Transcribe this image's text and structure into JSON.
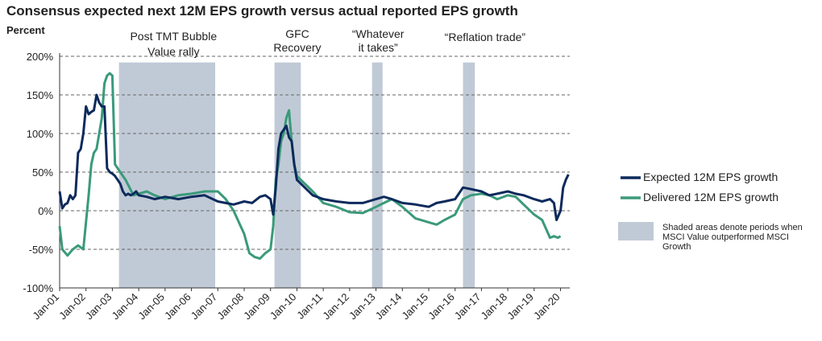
{
  "chart_data": {
    "type": "line",
    "title": "Consensus expected next 12M EPS growth versus actual reported EPS growth",
    "ylabel": "Percent",
    "ylim": [
      -100,
      200
    ],
    "y_ticks": [
      "200%",
      "150%",
      "100%",
      "50%",
      "0%",
      "-50%",
      "-100%"
    ],
    "y_tick_values": [
      200,
      150,
      100,
      50,
      0,
      -50,
      -100
    ],
    "x_tick_labels": [
      "Jan-01",
      "Jan-02",
      "Jan-03",
      "Jan-04",
      "Jan-05",
      "Jan-06",
      "Jan-07",
      "Jan-08",
      "Jan-09",
      "Jan-10",
      "Jan-11",
      "Jan-12",
      "Jan-13",
      "Jan-14",
      "Jan-15",
      "Jan-16",
      "Jan-17",
      "Jan-18",
      "Jan-19",
      "Jan-20"
    ],
    "xlim": [
      2001.0,
      2020.35
    ],
    "grid": "horizontal dashed",
    "colors": {
      "expected": "#0d2a5c",
      "delivered": "#3a9a7a",
      "shade": "#c0cad6"
    },
    "shaded_periods": [
      {
        "start": 2003.25,
        "end": 2006.9,
        "label": [
          "Post TMT Bubble",
          "Value rally"
        ]
      },
      {
        "start": 2009.15,
        "end": 2010.15,
        "label": [
          "GFC",
          "Recovery"
        ]
      },
      {
        "start": 2012.85,
        "end": 2013.25,
        "label": [
          "“Whatever",
          "it takes”"
        ]
      },
      {
        "start": 2016.3,
        "end": 2016.75,
        "label": [
          "“Reflation trade”"
        ]
      }
    ],
    "series": [
      {
        "name": "Expected 12M EPS growth",
        "x": [
          2001.0,
          2001.1,
          2001.2,
          2001.3,
          2001.4,
          2001.5,
          2001.6,
          2001.7,
          2001.8,
          2001.9,
          2002.0,
          2002.1,
          2002.2,
          2002.3,
          2002.4,
          2002.5,
          2002.6,
          2002.7,
          2002.8,
          2002.9,
          2003.0,
          2003.1,
          2003.2,
          2003.3,
          2003.4,
          2003.5,
          2003.6,
          2003.7,
          2003.8,
          2003.9,
          2004.0,
          2004.3,
          2004.6,
          2005.0,
          2005.5,
          2006.0,
          2006.5,
          2007.0,
          2007.3,
          2007.6,
          2008.0,
          2008.3,
          2008.6,
          2008.8,
          2009.0,
          2009.1,
          2009.2,
          2009.3,
          2009.4,
          2009.5,
          2009.6,
          2009.7,
          2009.8,
          2009.9,
          2010.0,
          2010.3,
          2010.6,
          2011.0,
          2011.5,
          2012.0,
          2012.5,
          2013.0,
          2013.3,
          2013.6,
          2014.0,
          2014.5,
          2015.0,
          2015.3,
          2015.6,
          2016.0,
          2016.3,
          2016.6,
          2017.0,
          2017.3,
          2017.6,
          2018.0,
          2018.3,
          2018.6,
          2019.0,
          2019.3,
          2019.6,
          2019.75,
          2019.85,
          2020.0,
          2020.1,
          2020.2,
          2020.3
        ],
        "values": [
          25,
          3,
          8,
          10,
          20,
          15,
          20,
          75,
          80,
          100,
          135,
          125,
          128,
          130,
          150,
          140,
          135,
          135,
          55,
          50,
          48,
          45,
          40,
          35,
          25,
          20,
          22,
          20,
          22,
          25,
          20,
          18,
          15,
          18,
          15,
          18,
          20,
          12,
          10,
          8,
          12,
          10,
          18,
          20,
          15,
          -5,
          30,
          80,
          100,
          105,
          110,
          95,
          90,
          60,
          40,
          30,
          20,
          15,
          12,
          10,
          10,
          15,
          18,
          15,
          10,
          8,
          5,
          10,
          12,
          15,
          30,
          28,
          25,
          20,
          22,
          25,
          22,
          20,
          15,
          12,
          15,
          10,
          -12,
          0,
          30,
          40,
          47
        ]
      },
      {
        "name": "Delivered 12M EPS growth",
        "x": [
          2001.0,
          2001.1,
          2001.3,
          2001.5,
          2001.7,
          2001.9,
          2002.0,
          2002.1,
          2002.2,
          2002.3,
          2002.4,
          2002.5,
          2002.6,
          2002.7,
          2002.8,
          2002.9,
          2003.0,
          2003.1,
          2003.2,
          2003.3,
          2003.5,
          2003.8,
          2004.0,
          2004.3,
          2004.6,
          2005.0,
          2005.5,
          2006.0,
          2006.5,
          2007.0,
          2007.3,
          2007.6,
          2007.8,
          2008.0,
          2008.2,
          2008.4,
          2008.6,
          2008.8,
          2009.0,
          2009.1,
          2009.2,
          2009.3,
          2009.4,
          2009.5,
          2009.6,
          2009.7,
          2009.8,
          2009.9,
          2010.0,
          2010.3,
          2010.6,
          2011.0,
          2011.5,
          2012.0,
          2012.5,
          2013.0,
          2013.3,
          2013.6,
          2014.0,
          2014.5,
          2015.0,
          2015.3,
          2015.6,
          2016.0,
          2016.3,
          2016.6,
          2017.0,
          2017.3,
          2017.6,
          2018.0,
          2018.3,
          2018.6,
          2019.0,
          2019.3,
          2019.6,
          2019.75,
          2019.9,
          2020.0
        ],
        "values": [
          -20,
          -50,
          -58,
          -50,
          -45,
          -50,
          -15,
          20,
          60,
          75,
          80,
          100,
          120,
          165,
          175,
          178,
          175,
          60,
          55,
          50,
          40,
          20,
          22,
          25,
          20,
          15,
          20,
          22,
          25,
          25,
          15,
          0,
          -15,
          -30,
          -55,
          -60,
          -62,
          -55,
          -50,
          -20,
          40,
          60,
          90,
          100,
          120,
          130,
          90,
          60,
          45,
          35,
          25,
          10,
          5,
          -2,
          -3,
          5,
          10,
          15,
          5,
          -10,
          -15,
          -18,
          -12,
          -5,
          15,
          20,
          22,
          20,
          15,
          20,
          18,
          8,
          -5,
          -12,
          -35,
          -33,
          -35,
          -33
        ]
      }
    ],
    "legend": {
      "position": "right",
      "items": [
        "Expected 12M EPS growth",
        "Delivered 12M EPS growth"
      ],
      "shade_note": [
        "Shaded areas denote periods when",
        "MSCI Value outperformed MSCI",
        "Growth"
      ]
    }
  }
}
